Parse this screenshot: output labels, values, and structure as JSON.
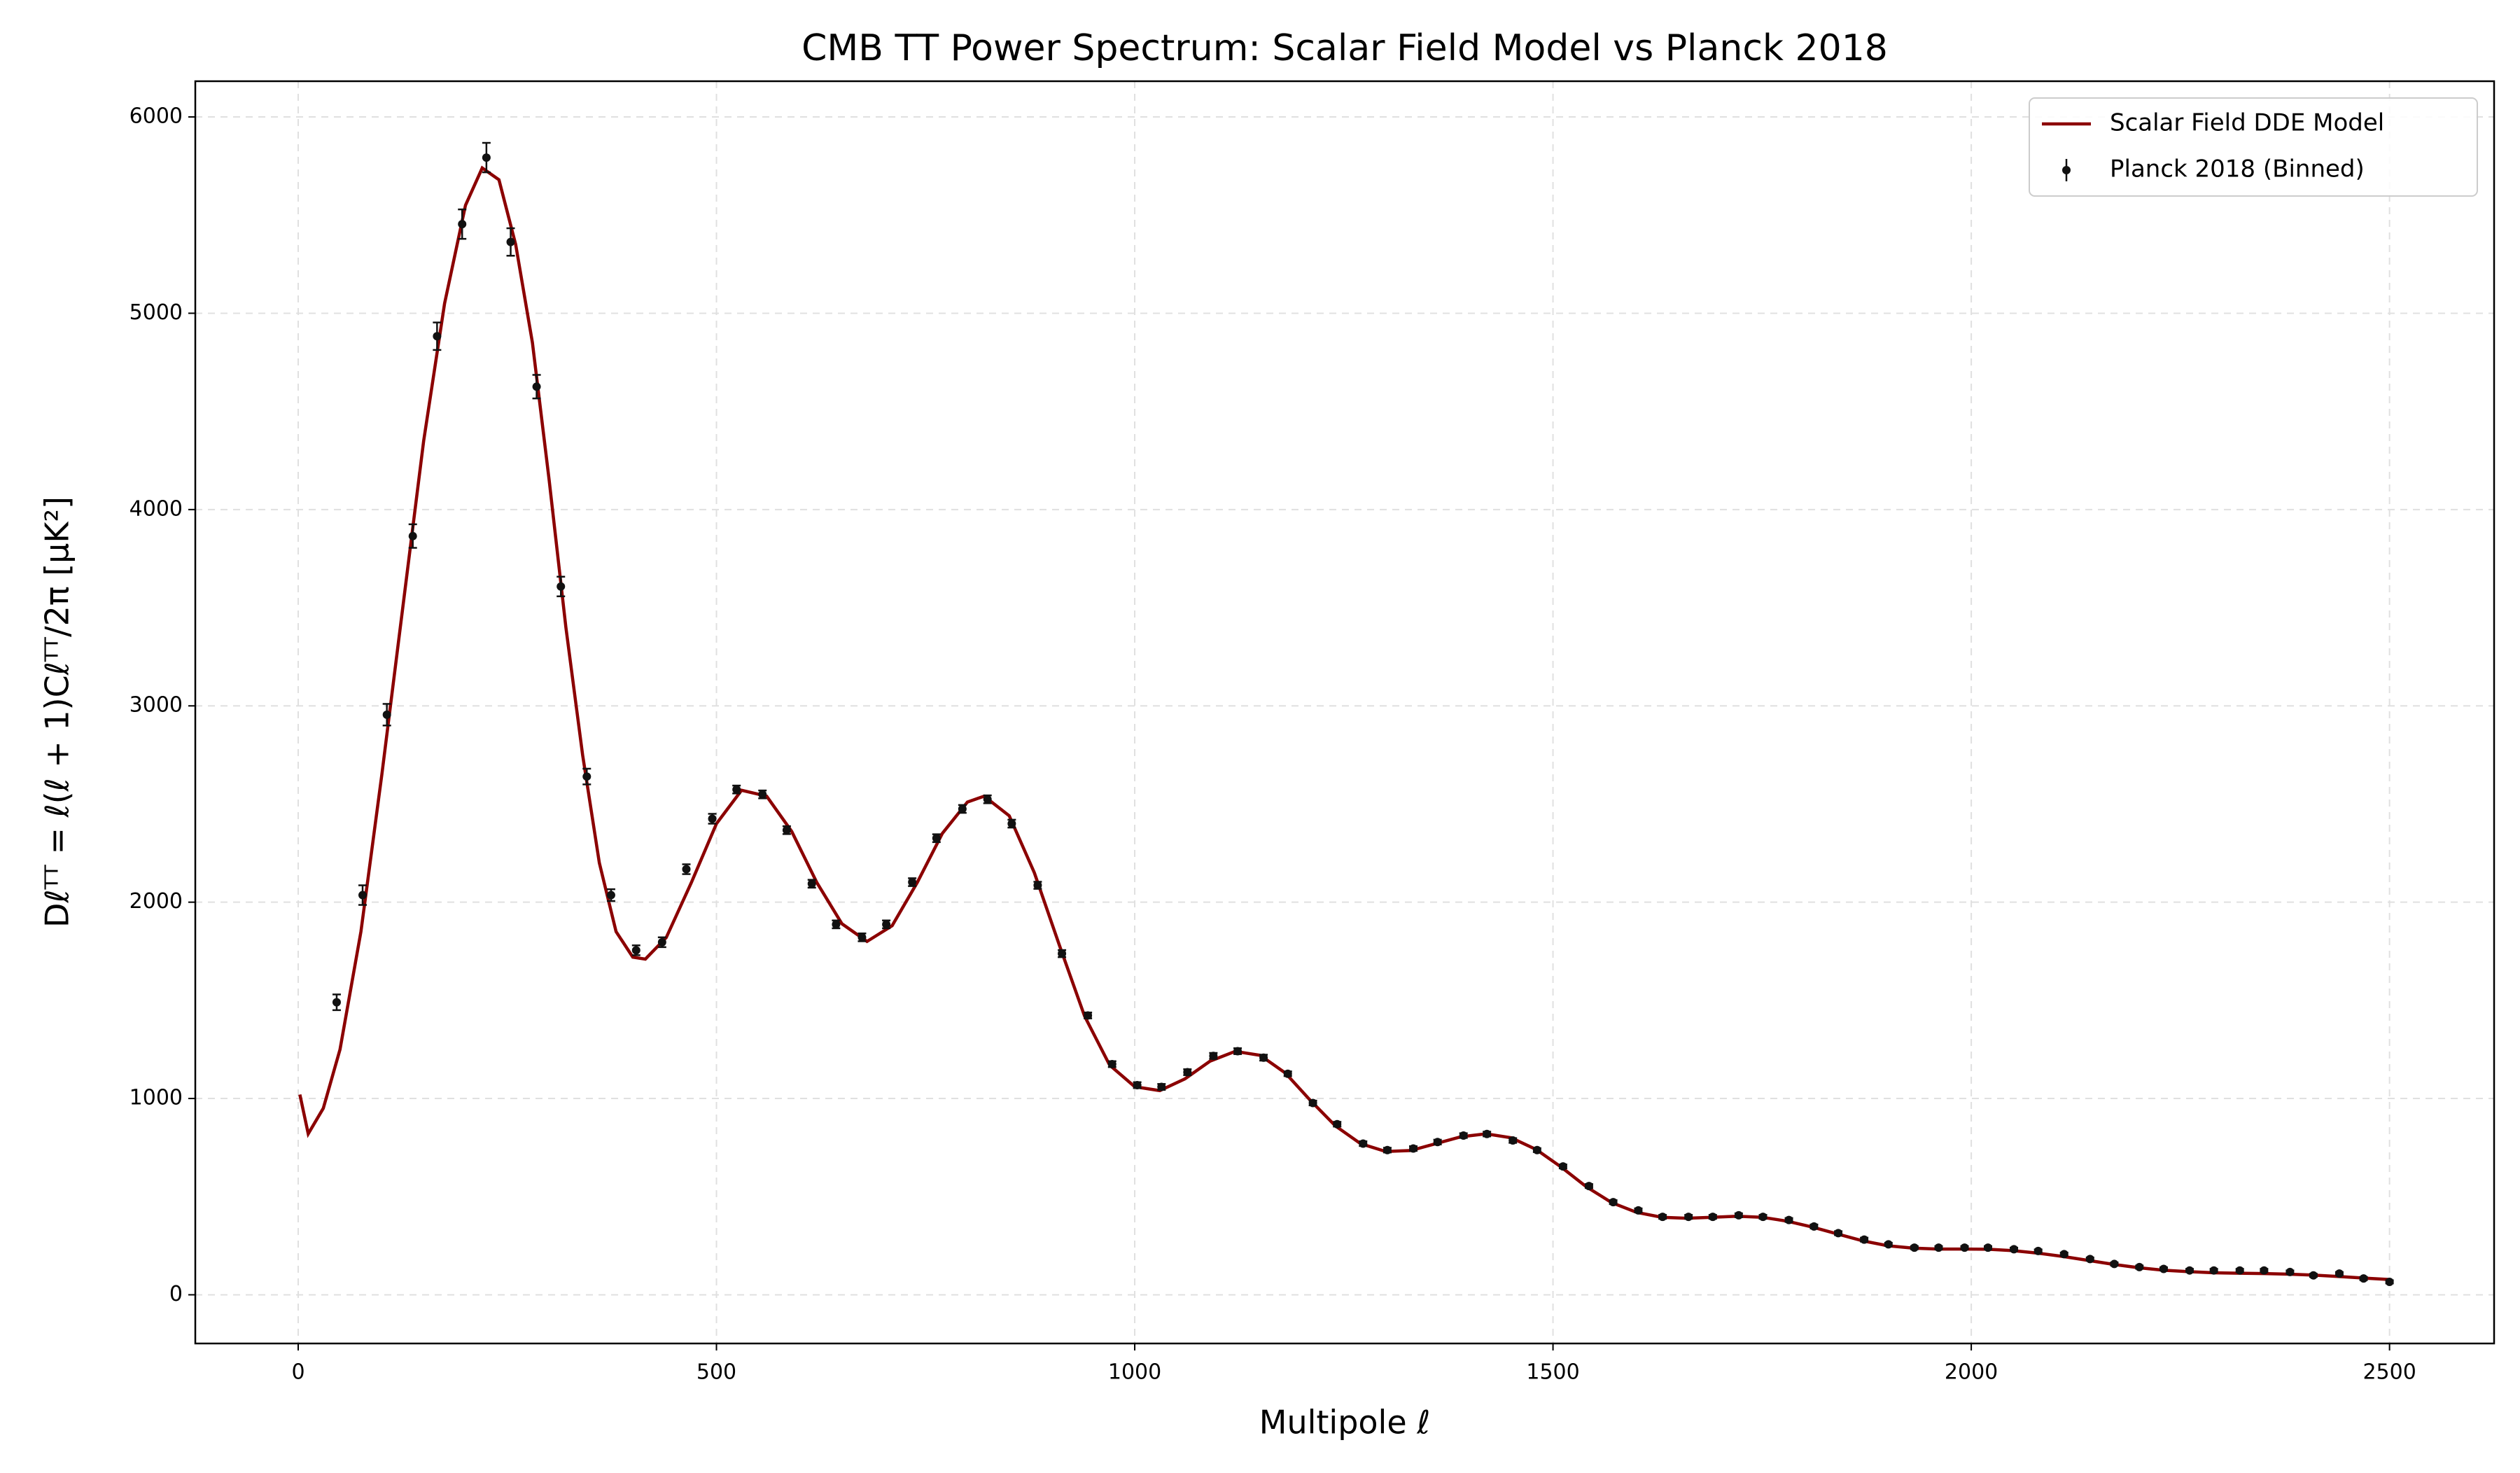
{
  "chart_data": {
    "type": "line",
    "title": "CMB TT Power Spectrum: Scalar Field Model vs Planck 2018",
    "xlabel": "Multipole ℓ",
    "ylabel": "Dℓᵀᵀ = ℓ(ℓ + 1)Cℓᵀᵀ/2π [μK²]",
    "xlim": [
      -123,
      2625
    ],
    "ylim": [
      -248,
      6182
    ],
    "xticks": [
      0,
      500,
      1000,
      1500,
      2000,
      2500
    ],
    "yticks": [
      0,
      1000,
      2000,
      3000,
      4000,
      5000,
      6000
    ],
    "grid": true,
    "legend": "upper right",
    "series": [
      {
        "name": "Scalar Field DDE Model",
        "type": "line",
        "color": "#8b0000",
        "x": [
          2,
          12,
          30,
          50,
          75,
          100,
          125,
          150,
          175,
          200,
          220,
          240,
          260,
          280,
          300,
          320,
          340,
          360,
          380,
          400,
          415,
          440,
          470,
          500,
          530,
          560,
          590,
          620,
          650,
          680,
          710,
          740,
          770,
          800,
          820,
          850,
          880,
          910,
          940,
          970,
          1000,
          1030,
          1060,
          1090,
          1120,
          1150,
          1180,
          1210,
          1240,
          1270,
          1300,
          1330,
          1360,
          1390,
          1420,
          1450,
          1480,
          1510,
          1540,
          1570,
          1600,
          1630,
          1660,
          1690,
          1720,
          1750,
          1780,
          1810,
          1840,
          1870,
          1900,
          1930,
          1960,
          1990,
          2020,
          2050,
          2080,
          2110,
          2140,
          2170,
          2200,
          2230,
          2260,
          2290,
          2320,
          2350,
          2380,
          2410,
          2440,
          2470,
          2500
        ],
        "values": [
          1020,
          820,
          950,
          1250,
          1850,
          2650,
          3500,
          4350,
          5050,
          5550,
          5740,
          5680,
          5350,
          4850,
          4150,
          3400,
          2750,
          2200,
          1850,
          1720,
          1710,
          1820,
          2100,
          2400,
          2570,
          2540,
          2360,
          2100,
          1890,
          1800,
          1880,
          2100,
          2350,
          2510,
          2540,
          2440,
          2150,
          1780,
          1420,
          1170,
          1060,
          1040,
          1100,
          1190,
          1240,
          1220,
          1130,
          990,
          860,
          770,
          730,
          735,
          770,
          805,
          820,
          800,
          740,
          650,
          550,
          470,
          420,
          395,
          390,
          395,
          400,
          395,
          375,
          345,
          310,
          275,
          250,
          238,
          233,
          233,
          232,
          225,
          212,
          195,
          175,
          155,
          138,
          125,
          118,
          112,
          110,
          108,
          105,
          100,
          93,
          85,
          78
        ]
      },
      {
        "name": "Planck 2018 (Binned)",
        "type": "errorbar",
        "color": "#111111",
        "x": [
          46,
          77,
          106,
          137,
          166,
          196,
          225,
          254,
          285,
          314,
          345,
          374,
          404,
          435,
          464,
          495,
          524,
          555,
          584,
          614,
          643,
          674,
          703,
          734,
          763,
          794,
          824,
          853,
          884,
          913,
          944,
          973,
          1003,
          1032,
          1063,
          1094,
          1123,
          1154,
          1183,
          1213,
          1242,
          1273,
          1302,
          1333,
          1362,
          1393,
          1421,
          1452,
          1481,
          1512,
          1543,
          1572,
          1602,
          1631,
          1662,
          1691,
          1722,
          1751,
          1782,
          1812,
          1841,
          1872,
          1901,
          1932,
          1961,
          1992,
          2020,
          2051,
          2080,
          2111,
          2142,
          2171,
          2201,
          2230,
          2261,
          2290,
          2321,
          2350,
          2381,
          2409,
          2440,
          2469,
          2500
        ],
        "values": [
          1490,
          2036,
          2955,
          3865,
          4883,
          5454,
          5793,
          5363,
          4626,
          3608,
          2640,
          2036,
          1755,
          1796,
          2168,
          2425,
          2574,
          2549,
          2367,
          2094,
          1887,
          1821,
          1887,
          2102,
          2326,
          2475,
          2524,
          2400,
          2086,
          1738,
          1423,
          1175,
          1068,
          1059,
          1134,
          1217,
          1241,
          1208,
          1126,
          977,
          869,
          770,
          737,
          745,
          778,
          811,
          819,
          786,
          737,
          654,
          554,
          472,
          430,
          397,
          397,
          397,
          405,
          397,
          381,
          348,
          314,
          281,
          257,
          240,
          240,
          240,
          240,
          232,
          223,
          207,
          182,
          157,
          141,
          132,
          124,
          124,
          124,
          124,
          116,
          99,
          108,
          83,
          66
        ],
        "errors": [
          40,
          50,
          55,
          60,
          70,
          75,
          75,
          70,
          60,
          50,
          40,
          30,
          25,
          25,
          25,
          25,
          20,
          20,
          20,
          20,
          20,
          20,
          20,
          20,
          20,
          20,
          20,
          20,
          18,
          18,
          15,
          15,
          15,
          15,
          15,
          15,
          15,
          15,
          12,
          12,
          12,
          12,
          12,
          12,
          12,
          12,
          12,
          12,
          10,
          10,
          10,
          10,
          10,
          10,
          10,
          10,
          10,
          10,
          10,
          10,
          10,
          10,
          8,
          8,
          8,
          8,
          8,
          8,
          8,
          8,
          8,
          8,
          8,
          8,
          8,
          8,
          8,
          8,
          8,
          8,
          8,
          8,
          8
        ]
      }
    ]
  }
}
